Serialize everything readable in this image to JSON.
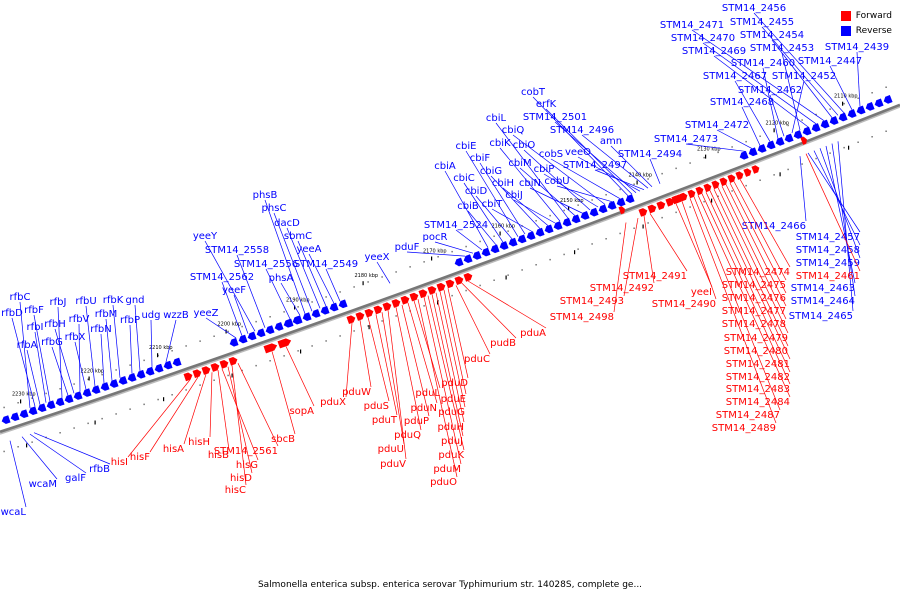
{
  "caption": "Salmonella enterica subsp. enterica serovar Typhimurium str. 14028S, complete ge...",
  "legend": [
    {
      "label": "Forward",
      "color": "#ff0000"
    },
    {
      "label": "Reverse",
      "color": "#0000ff"
    }
  ],
  "colors": {
    "forward": "#ff0000",
    "reverse": "#0000ff",
    "backbone": "#888888"
  },
  "scale": {
    "unit": "kbp",
    "ticks": [
      2110,
      2120,
      2130,
      2140,
      2150,
      2160,
      2170,
      2180,
      2190,
      2200,
      2210,
      2220,
      2230
    ]
  },
  "genes": {
    "forward": [
      "hisI",
      "hisF",
      "hisA",
      "hisH",
      "hisB",
      "hisG",
      "hisD",
      "hisC",
      "STM14_2561",
      "sbcB",
      "sopA",
      "pduX",
      "pduW",
      "pduS",
      "pduT",
      "pduV",
      "pduU",
      "pduQ",
      "pduP",
      "pduN",
      "pduL",
      "pduO",
      "pduM",
      "pduK",
      "pduJ",
      "pduH",
      "pduG",
      "pduE",
      "pduD",
      "pduC",
      "pduB",
      "pduA",
      "STM14_2498",
      "STM14_2493",
      "STM14_2492",
      "STM14_2491",
      "yeeI",
      "STM14_2490",
      "STM14_2489",
      "STM14_2487",
      "STM14_2484",
      "STM14_2483",
      "STM14_2482",
      "STM14_2481",
      "STM14_2480",
      "STM14_2479",
      "STM14_2478",
      "STM14_2477",
      "STM14_2476",
      "STM14_2475",
      "STM14_2474",
      "STM14_2461"
    ],
    "reverse": [
      "wcaL",
      "wcaM",
      "galF",
      "rfbB",
      "rfbC",
      "rfbD",
      "rfbA",
      "rfbI",
      "rfbF",
      "rfbG",
      "rfbH",
      "rfbJ",
      "rfbV",
      "rfbX",
      "rfbU",
      "rfbN",
      "rfbM",
      "rfbK",
      "rfbP",
      "gnd",
      "udg",
      "wzzB",
      "yeeZ",
      "STM14_2562",
      "yeeF",
      "yeeY",
      "STM14_2558",
      "STM14_2556",
      "phsA",
      "phsB",
      "phsC",
      "dacD",
      "sbmC",
      "yeeA",
      "STM14_2549",
      "yeeX",
      "pduF",
      "pocR",
      "STM14_2524",
      "cbiA",
      "cbiB",
      "cbiC",
      "cbiD",
      "cbiE",
      "cbiF",
      "cbiT",
      "cbiG",
      "cbiH",
      "cbiJ",
      "cbiK",
      "cbiL",
      "cbiM",
      "cbiN",
      "cbiO",
      "cbiP",
      "cbiQ",
      "cobU",
      "cobS",
      "cobT",
      "erfK",
      "STM14_2501",
      "veeO",
      "STM14_2497",
      "STM14_2496",
      "amn",
      "STM14_2494",
      "STM14_2473",
      "STM14_2472",
      "STM14_2468",
      "STM14_2467",
      "STM14_2460",
      "STM14_2462",
      "STM14_2452",
      "STM14_2453",
      "STM14_2469",
      "STM14_2470",
      "STM14_2471",
      "STM14_2454",
      "STM14_2455",
      "STM14_2456",
      "STM14_2447",
      "STM14_2439",
      "STM14_2466",
      "STM14_2457",
      "STM14_2458",
      "STM14_2459",
      "STM14_2463",
      "STM14_2464",
      "STM14_2465"
    ]
  },
  "chart_data": {
    "type": "genome-map",
    "caption": "Salmonella enterica subsp. enterica serovar Typhimurium str. 14028S, complete ge...",
    "axis_unit": "kbp",
    "tick_labels": [
      "2110 kbp",
      "2120 kbp",
      "2130 kbp",
      "2140 kbp",
      "2150 kbp",
      "2160 kbp",
      "2170 kbp",
      "2180 kbp",
      "2190 kbp",
      "2200 kbp",
      "2210 kbp",
      "2220 kbp",
      "2230 kbp"
    ],
    "legend": [
      "Forward",
      "Reverse"
    ]
  }
}
